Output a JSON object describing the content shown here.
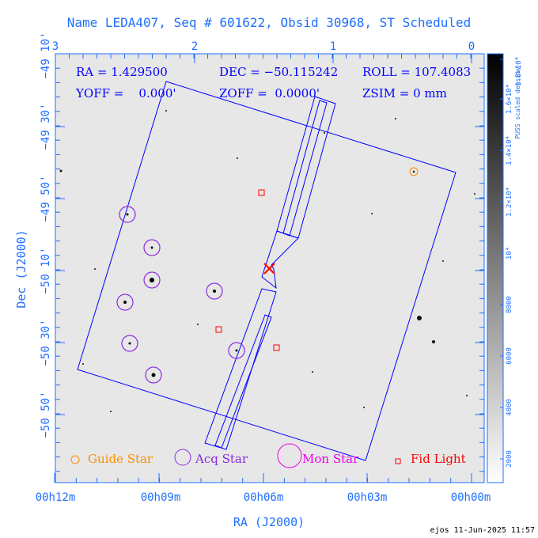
{
  "title": "Name LEDA407, Seq # 601622, Obsid 30968, ST Scheduled",
  "info": {
    "ra": "RA = 1.429500",
    "dec": "DEC = −50.115242",
    "roll": "ROLL = 107.4083",
    "yoff": "YOFF =    0.000'",
    "zoff": "ZOFF =  0.0000'",
    "zsim": "ZSIM = 0 mm"
  },
  "axes": {
    "xlabel": "RA (J2000)",
    "ylabel": "Dec (J2000)",
    "bottom_ticks": [
      "00h12m",
      "00h09m",
      "00h06m",
      "00h03m",
      "00h00m"
    ],
    "left_ticks": [
      "−49 10'",
      "−49 30'",
      "−49 50'",
      "−50 10'",
      "−50 30'",
      "−50 50'"
    ],
    "top_ticks": [
      "3",
      "2",
      "1",
      "0"
    ]
  },
  "colorbar": {
    "label": "PUSS scaled density",
    "ticks": [
      "2000",
      "4000",
      "6000",
      "8000",
      "10⁴",
      "1.2×10⁴",
      "1.4×10⁴",
      "1.6×10⁴",
      "1.8×10⁴"
    ]
  },
  "legend": {
    "guide": "Guide Star",
    "acq": "Acq Star",
    "mon": "Mon Star",
    "fid": "Fid Light"
  },
  "colors": {
    "axis": "#1f6fff",
    "instrument": "#0000ff",
    "guide": "#ff8c00",
    "acq": "#8a2be2",
    "mon": "#ee00ee",
    "fid": "#ff0000",
    "target": "#ff0000"
  },
  "footer": "ejos 11-Jun-2025 11:57"
}
